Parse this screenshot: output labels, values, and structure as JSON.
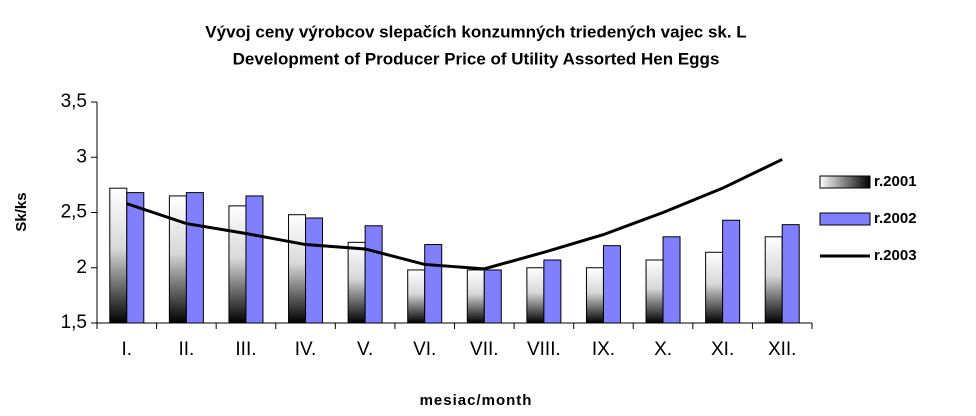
{
  "chart_data": {
    "type": "bar",
    "title": "Vývoj ceny výrobcov slepačích konzumných triedených vajec sk. L",
    "subtitle": "Development of Producer Price of Utility Assorted Hen Eggs",
    "x_label": "mesiac/month",
    "y_label": "Sk/ks",
    "categories": [
      "I.",
      "II.",
      "III.",
      "IV.",
      "V.",
      "VI.",
      "VII.",
      "VIII.",
      "IX.",
      "X.",
      "XI.",
      "XII."
    ],
    "series": [
      {
        "name": "r.2001",
        "type": "bar",
        "color": "#000000",
        "values": [
          2.72,
          2.65,
          2.56,
          2.48,
          2.23,
          1.98,
          1.98,
          2.0,
          2.0,
          2.07,
          2.14,
          2.28
        ]
      },
      {
        "name": "r.2002",
        "type": "bar",
        "color": "#8080ff",
        "values": [
          2.68,
          2.68,
          2.65,
          2.45,
          2.38,
          2.21,
          1.98,
          2.07,
          2.2,
          2.28,
          2.43,
          2.39
        ]
      },
      {
        "name": "r.2003",
        "type": "line",
        "color": "#000000",
        "values": [
          2.58,
          2.4,
          2.31,
          2.21,
          2.17,
          2.03,
          1.99,
          2.14,
          2.3,
          2.5,
          2.72,
          2.98
        ]
      }
    ],
    "ylim": [
      1.5,
      3.5
    ],
    "yticks": [
      {
        "value": 1.5,
        "label": "1,5"
      },
      2,
      {
        "value": 2.5,
        "label": "2,5"
      },
      3,
      {
        "value": 3.5,
        "label": "3,5"
      }
    ],
    "legend": "right"
  }
}
